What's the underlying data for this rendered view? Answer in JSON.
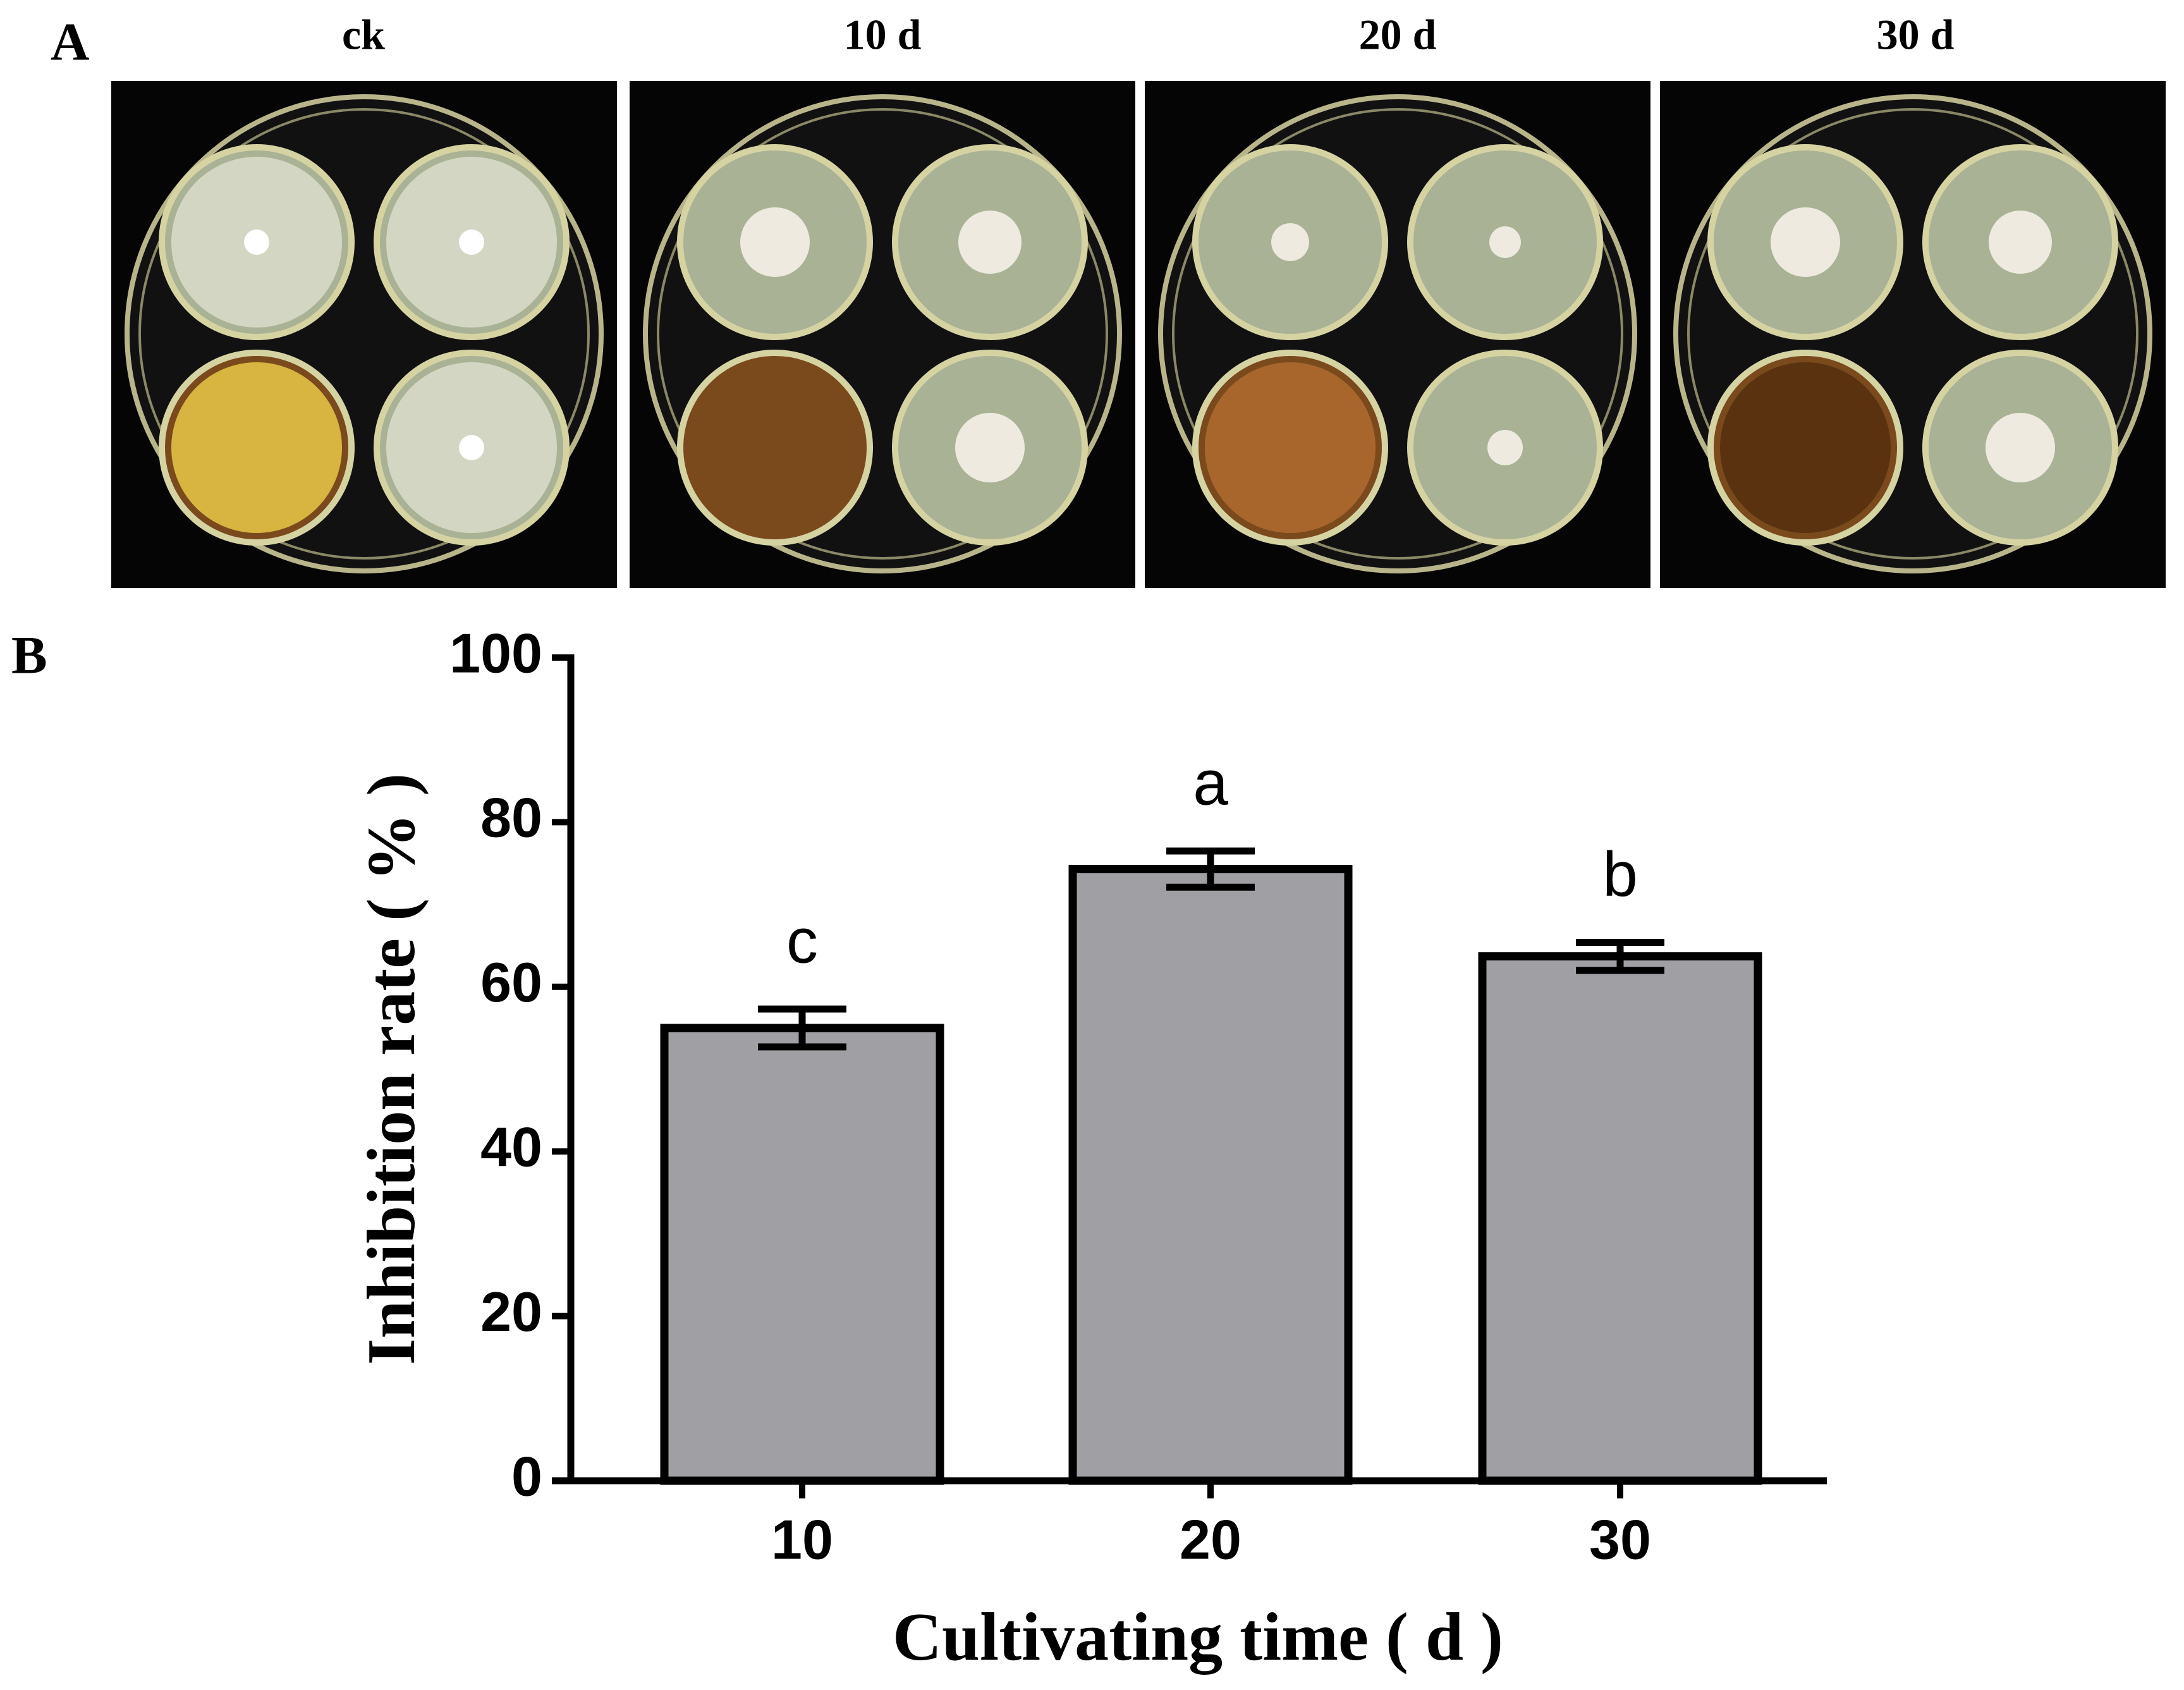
{
  "panel_a": {
    "label": "A",
    "images": [
      {
        "label": "ck"
      },
      {
        "label": "10 d"
      },
      {
        "label": "20 d"
      },
      {
        "label": "30 d"
      }
    ]
  },
  "panel_b": {
    "label": "B"
  },
  "chart_data": {
    "type": "bar",
    "categories": [
      "10",
      "20",
      "30"
    ],
    "values": [
      55,
      74.3,
      63.7
    ],
    "errors": [
      2.3,
      2.2,
      1.7
    ],
    "annotations": [
      "c",
      "a",
      "b"
    ],
    "color": "#a09fa4",
    "ylim": [
      0,
      100
    ],
    "yticks": [
      0,
      20,
      40,
      60,
      80,
      100
    ],
    "x_label": "Cultivating time ( d )",
    "y_label": "Inhibition rate ( % )"
  }
}
